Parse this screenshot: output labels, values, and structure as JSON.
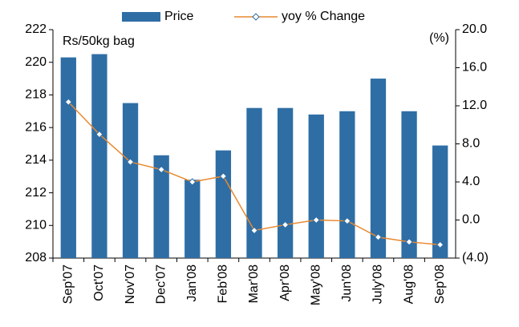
{
  "chart_data": {
    "type": "bar",
    "annotations": [
      "Rs/50kg bag",
      "(%)"
    ],
    "categories": [
      "Sep'07",
      "Oct'07",
      "Nov'07",
      "Dec'07",
      "Jan'08",
      "Feb'08",
      "Mar'08",
      "Apr'08",
      "May'08",
      "Jun'08",
      "July'08",
      "Aug'08",
      "Sep'08"
    ],
    "series": [
      {
        "name": "Price",
        "type": "bar",
        "color": "#2f6ea5",
        "values": [
          220.3,
          220.5,
          217.5,
          214.3,
          212.8,
          214.6,
          217.2,
          217.2,
          216.8,
          217.0,
          219.0,
          217.0,
          214.9
        ]
      },
      {
        "name": "yoy % Change",
        "type": "line",
        "axis": "y2",
        "color": "#e8892f",
        "values": [
          12.4,
          9.0,
          6.1,
          5.3,
          4.0,
          4.6,
          -1.1,
          -0.5,
          0.0,
          -0.1,
          -1.8,
          -2.3,
          -2.6
        ]
      }
    ],
    "ylim": [
      208,
      222
    ],
    "yticks": [
      208,
      210,
      212,
      214,
      216,
      218,
      220,
      222
    ],
    "y2lim": [
      -4,
      20
    ],
    "y2ticks": [
      {
        "value": -4,
        "label": "(4.0)"
      },
      {
        "value": 0,
        "label": "0.0"
      },
      {
        "value": 4,
        "label": "4.0"
      },
      {
        "value": 8,
        "label": "8.0"
      },
      {
        "value": 12,
        "label": "12.0"
      },
      {
        "value": 16,
        "label": "16.0"
      },
      {
        "value": 20,
        "label": "20.0"
      }
    ],
    "grid": false,
    "legend": "top"
  }
}
